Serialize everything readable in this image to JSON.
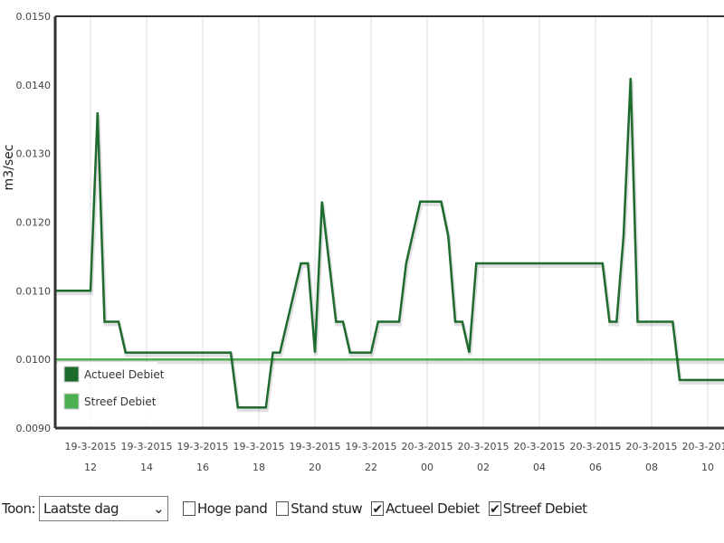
{
  "chart_data": {
    "type": "line",
    "ylabel": "m3/sec",
    "ylim": [
      0.009,
      0.015
    ],
    "yticks": [
      "0.0090",
      "0.0100",
      "0.0110",
      "0.0120",
      "0.0130",
      "0.0140",
      "0.0150"
    ],
    "xticks": [
      {
        "date": "19-3-2015",
        "hour": "12",
        "t": "2015-03-19T12:00"
      },
      {
        "date": "19-3-2015",
        "hour": "14",
        "t": "2015-03-19T14:00"
      },
      {
        "date": "19-3-2015",
        "hour": "16",
        "t": "2015-03-19T16:00"
      },
      {
        "date": "19-3-2015",
        "hour": "18",
        "t": "2015-03-19T18:00"
      },
      {
        "date": "19-3-2015",
        "hour": "20",
        "t": "2015-03-19T20:00"
      },
      {
        "date": "19-3-2015",
        "hour": "22",
        "t": "2015-03-19T22:00"
      },
      {
        "date": "20-3-2015",
        "hour": "00",
        "t": "2015-03-20T00:00"
      },
      {
        "date": "20-3-2015",
        "hour": "02",
        "t": "2015-03-20T02:00"
      },
      {
        "date": "20-3-2015",
        "hour": "04",
        "t": "2015-03-20T04:00"
      },
      {
        "date": "20-3-2015",
        "hour": "06",
        "t": "2015-03-20T06:00"
      },
      {
        "date": "20-3-2015",
        "hour": "08",
        "t": "2015-03-20T08:00"
      },
      {
        "date": "20-3-2015",
        "hour": "10",
        "t": "2015-03-20T10:00"
      }
    ],
    "xlim": [
      "2015-03-19T10:45",
      "2015-03-20T10:36"
    ],
    "grid": "vertical",
    "legend": "bottom-left",
    "series": [
      {
        "name": "Actueel Debiet",
        "color": "#1e6b2e",
        "points": [
          [
            "2015-03-19T10:45",
            0.011
          ],
          [
            "2015-03-19T12:00",
            0.011
          ],
          [
            "2015-03-19T12:15",
            0.0136
          ],
          [
            "2015-03-19T12:30",
            0.01055
          ],
          [
            "2015-03-19T13:00",
            0.01055
          ],
          [
            "2015-03-19T13:15",
            0.0101
          ],
          [
            "2015-03-19T17:00",
            0.0101
          ],
          [
            "2015-03-19T17:15",
            0.0093
          ],
          [
            "2015-03-19T18:15",
            0.0093
          ],
          [
            "2015-03-19T18:30",
            0.0101
          ],
          [
            "2015-03-19T18:45",
            0.0101
          ],
          [
            "2015-03-19T19:30",
            0.0114
          ],
          [
            "2015-03-19T19:45",
            0.0114
          ],
          [
            "2015-03-19T20:00",
            0.0101
          ],
          [
            "2015-03-19T20:15",
            0.0123
          ],
          [
            "2015-03-19T20:45",
            0.01055
          ],
          [
            "2015-03-19T21:00",
            0.01055
          ],
          [
            "2015-03-19T21:15",
            0.0101
          ],
          [
            "2015-03-19T22:00",
            0.0101
          ],
          [
            "2015-03-19T22:15",
            0.01055
          ],
          [
            "2015-03-19T23:00",
            0.01055
          ],
          [
            "2015-03-19T23:15",
            0.0114
          ],
          [
            "2015-03-19T23:45",
            0.0123
          ],
          [
            "2015-03-20T00:30",
            0.0123
          ],
          [
            "2015-03-20T00:45",
            0.0118
          ],
          [
            "2015-03-20T01:00",
            0.01055
          ],
          [
            "2015-03-20T01:15",
            0.01055
          ],
          [
            "2015-03-20T01:30",
            0.0101
          ],
          [
            "2015-03-20T01:45",
            0.0114
          ],
          [
            "2015-03-20T06:15",
            0.0114
          ],
          [
            "2015-03-20T06:30",
            0.01055
          ],
          [
            "2015-03-20T06:45",
            0.01055
          ],
          [
            "2015-03-20T07:00",
            0.0118
          ],
          [
            "2015-03-20T07:15",
            0.0141
          ],
          [
            "2015-03-20T07:30",
            0.01055
          ],
          [
            "2015-03-20T08:45",
            0.01055
          ],
          [
            "2015-03-20T09:00",
            0.0097
          ],
          [
            "2015-03-20T10:36",
            0.0097
          ]
        ]
      },
      {
        "name": "Streef Debiet",
        "color": "#4caf50",
        "points": [
          [
            "2015-03-19T10:45",
            0.01
          ],
          [
            "2015-03-20T10:36",
            0.01
          ]
        ]
      }
    ]
  },
  "controls": {
    "toon_label": "Toon:",
    "toon_value": "Laatste dag",
    "checkboxes": [
      {
        "label": "Hoge pand",
        "checked": false
      },
      {
        "label": "Stand stuw",
        "checked": false
      },
      {
        "label": "Actueel Debiet",
        "checked": true
      },
      {
        "label": "Streef Debiet",
        "checked": true
      }
    ]
  }
}
